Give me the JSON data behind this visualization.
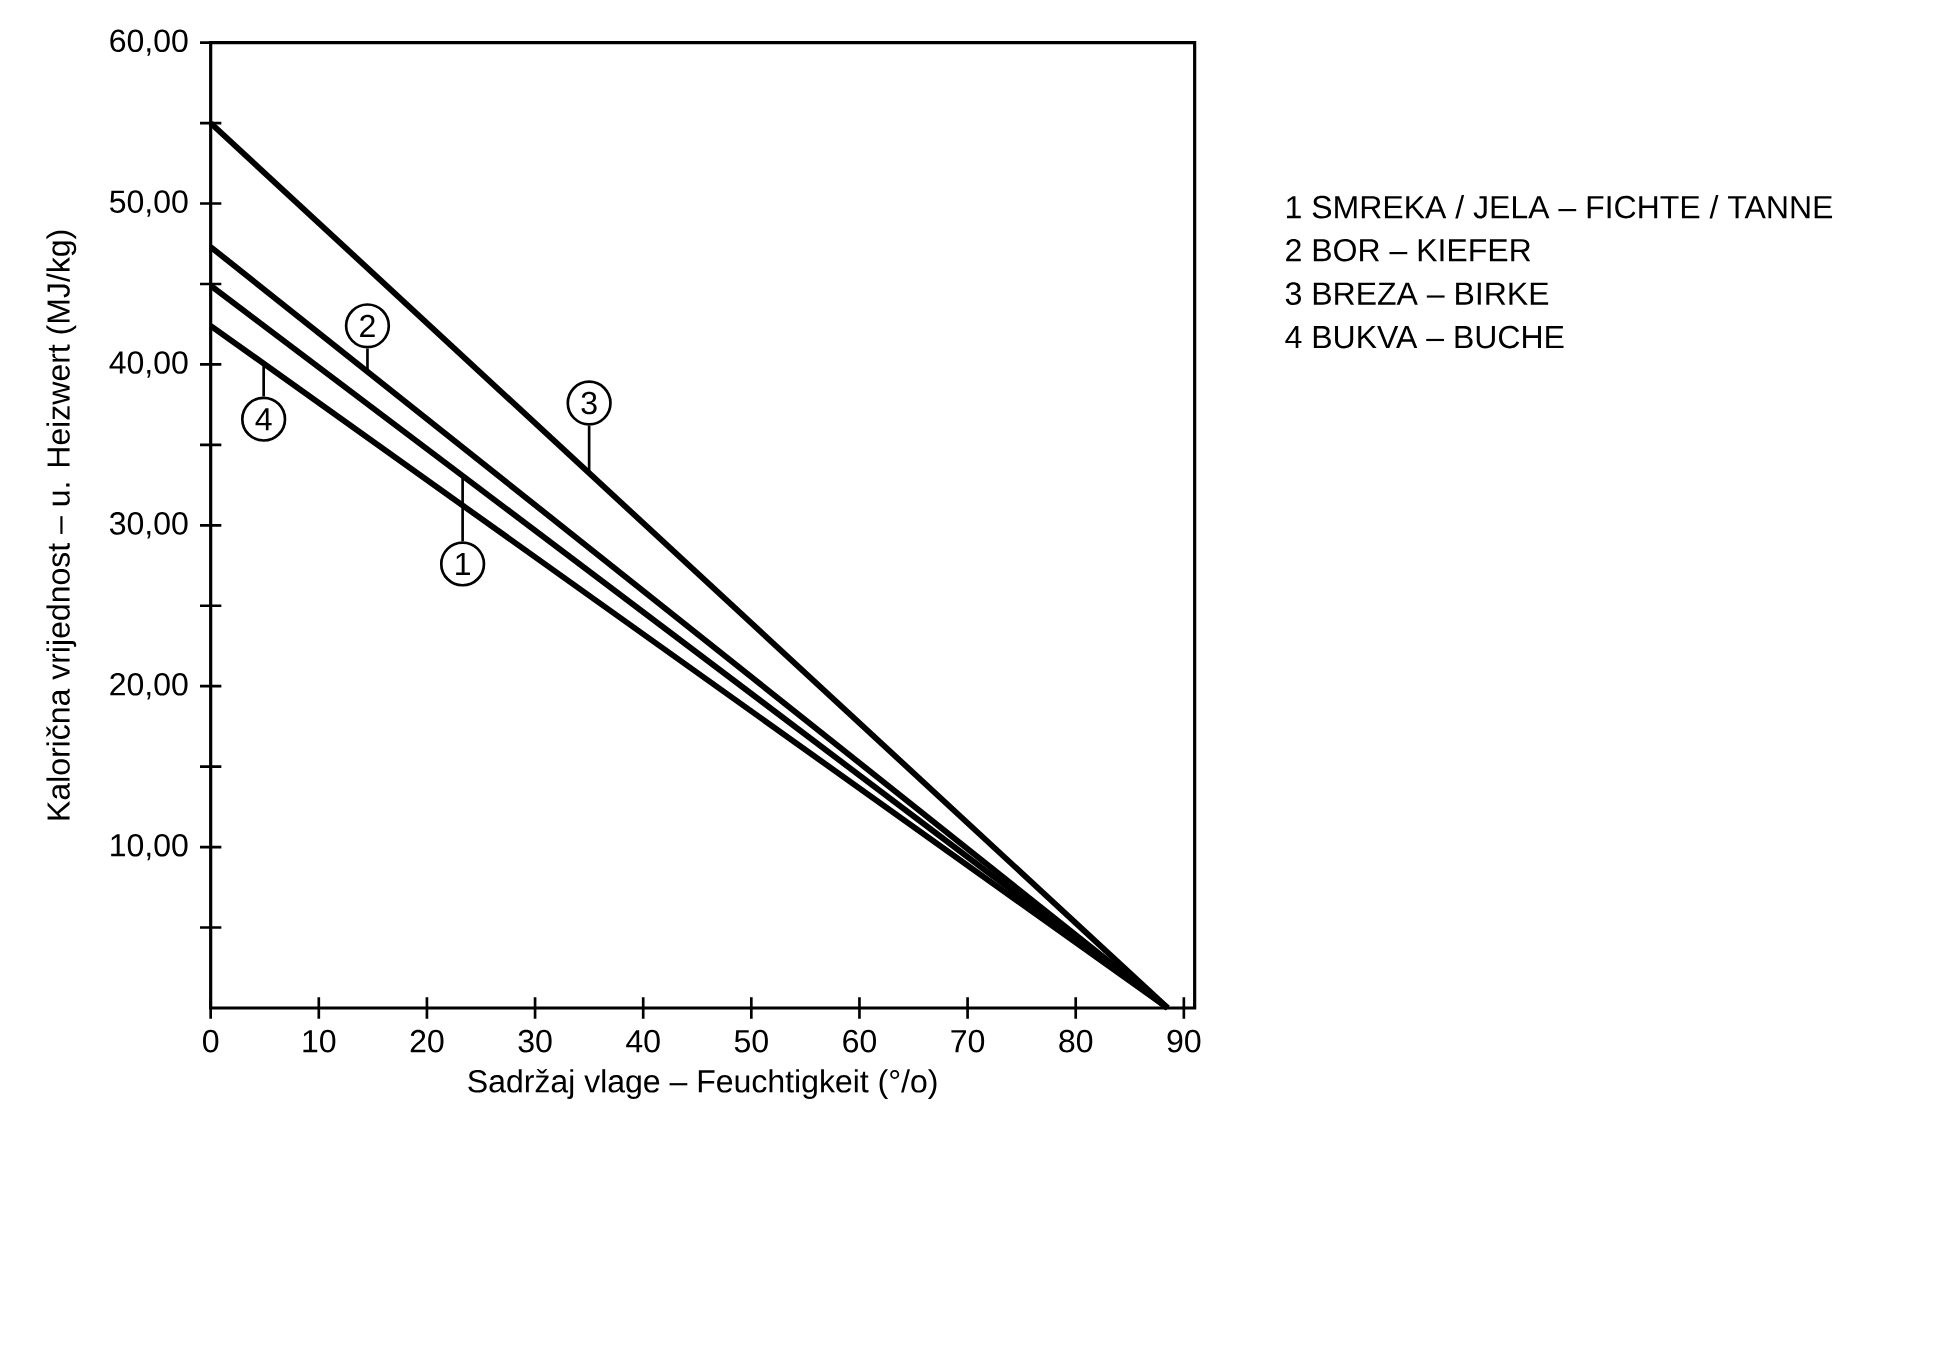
{
  "chart_data": {
    "type": "line",
    "xlabel": "Sadržaj  vlage – Feuchtigkeit  (°/o)",
    "ylabel": "Kalorična  vrijednost – u. Heizwert  (MJ/kg)",
    "x": [
      0,
      88.5
    ],
    "series": [
      {
        "name": "1  SMREKA / JELA – FICHTE / TANNE",
        "color": "#000000",
        "values": [
          44.9,
          0
        ]
      },
      {
        "name": "2  BOR – KIEFER",
        "color": "#000000",
        "values": [
          47.3,
          0
        ]
      },
      {
        "name": "3  BREZA – BIRKE",
        "color": "#000000",
        "values": [
          55,
          0
        ]
      },
      {
        "name": "4  BUKVA – BUCHE",
        "color": "#000000",
        "values": [
          42.4,
          0
        ]
      }
    ],
    "annotations": [
      {
        "text": "1",
        "x": 23.3,
        "y": 27.6
      },
      {
        "text": "2",
        "x": 14.5,
        "y": 42.4
      },
      {
        "text": "3",
        "x": 35,
        "y": 37.6
      },
      {
        "text": "4",
        "x": 4.9,
        "y": 36.6
      }
    ],
    "xlim": [
      0,
      91
    ],
    "ylim": [
      0,
      60
    ],
    "xticks": [
      0,
      10,
      20,
      30,
      40,
      50,
      60,
      70,
      80,
      90
    ],
    "yticks": [
      {
        "value": 5,
        "label": null
      },
      {
        "value": 10,
        "label": "10,00"
      },
      {
        "value": 15,
        "label": null
      },
      {
        "value": 20,
        "label": "20,00"
      },
      {
        "value": 25,
        "label": null
      },
      {
        "value": 30,
        "label": "30,00"
      },
      {
        "value": 35,
        "label": null
      },
      {
        "value": 40,
        "label": "40,00"
      },
      {
        "value": 45,
        "label": null
      },
      {
        "value": 50,
        "label": "50,00"
      },
      {
        "value": 55,
        "label": null
      },
      {
        "value": 60,
        "label": "60,00"
      }
    ],
    "grid": false,
    "legend": "right",
    "marker": "none",
    "line_style": "solid"
  }
}
